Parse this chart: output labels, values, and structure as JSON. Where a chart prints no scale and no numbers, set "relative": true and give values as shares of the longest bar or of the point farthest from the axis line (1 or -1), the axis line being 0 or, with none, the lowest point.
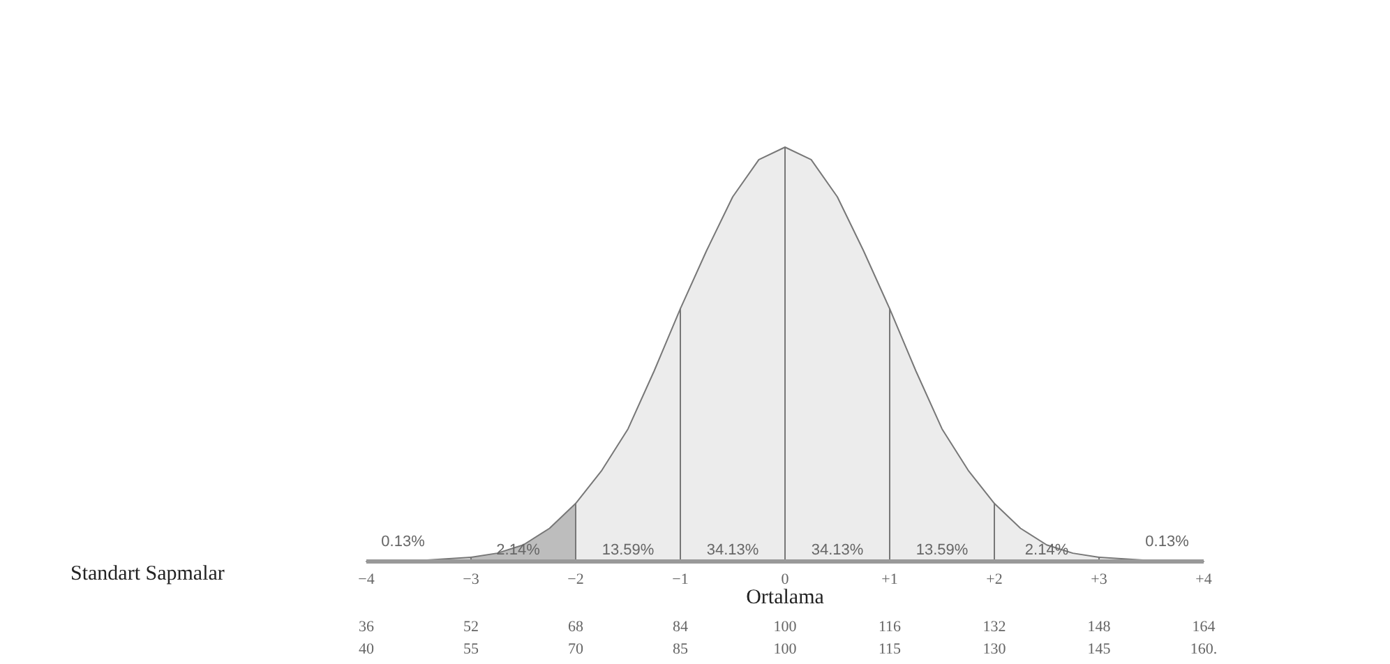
{
  "chart_data": {
    "type": "area",
    "relative": true,
    "xlim": [
      -4,
      4
    ],
    "xticks": [
      -4,
      -3,
      -2,
      -1,
      0,
      {
        "value": 1,
        "label": "+1"
      },
      {
        "value": 2,
        "label": "+2"
      },
      {
        "value": 3,
        "label": "+3"
      },
      {
        "value": 4,
        "label": "+4"
      }
    ],
    "x2lim": [
      36,
      164
    ],
    "x2ticks": [
      36,
      52,
      68,
      84,
      100,
      116,
      132,
      148,
      164
    ],
    "series": [
      {
        "color": "#d9d9d9",
        "x": [
          -4,
          -3.5,
          -3
        ],
        "values": [
          0,
          0.002,
          0.01
        ]
      },
      {
        "color": "#bdbdbd",
        "x": [
          -3,
          -2.75,
          -2.5,
          -2.25,
          -2
        ],
        "values": [
          0.01,
          0.02,
          0.04,
          0.08,
          0.14
        ]
      },
      {
        "color": "#ececec",
        "x": [
          -2,
          -1.75,
          -1.5,
          -1.25,
          -1
        ],
        "values": [
          0.14,
          0.22,
          0.32,
          0.46,
          0.61
        ]
      },
      {
        "color": "#ececec",
        "x": [
          -1,
          -0.75,
          -0.5,
          -0.25,
          0
        ],
        "values": [
          0.61,
          0.75,
          0.88,
          0.97,
          1
        ]
      },
      {
        "color": "#ececec",
        "x": [
          0,
          0.25,
          0.5,
          0.75,
          1
        ],
        "values": [
          1,
          0.97,
          0.88,
          0.75,
          0.61
        ]
      },
      {
        "color": "#ececec",
        "x": [
          1,
          1.25,
          1.5,
          1.75,
          2
        ],
        "values": [
          0.61,
          0.46,
          0.32,
          0.22,
          0.14
        ]
      },
      {
        "color": "#ececec",
        "x": [
          2,
          2.25,
          2.5,
          2.75,
          3
        ],
        "values": [
          0.14,
          0.08,
          0.04,
          0.02,
          0.01
        ]
      },
      {
        "color": "#ececec",
        "x": [
          3,
          3.5,
          4
        ],
        "values": [
          0.01,
          0.002,
          0
        ]
      }
    ],
    "annotations": [
      "0.13%",
      "2.14%",
      "13.59%",
      "34.13%",
      "34.13%",
      "13.59%",
      "2.14%",
      "0.13%",
      "Ortalama",
      "Standart Sapmalar",
      "40",
      "55",
      "70",
      "85",
      "100",
      "115",
      "130",
      "145",
      "160."
    ],
    "grid": false
  }
}
